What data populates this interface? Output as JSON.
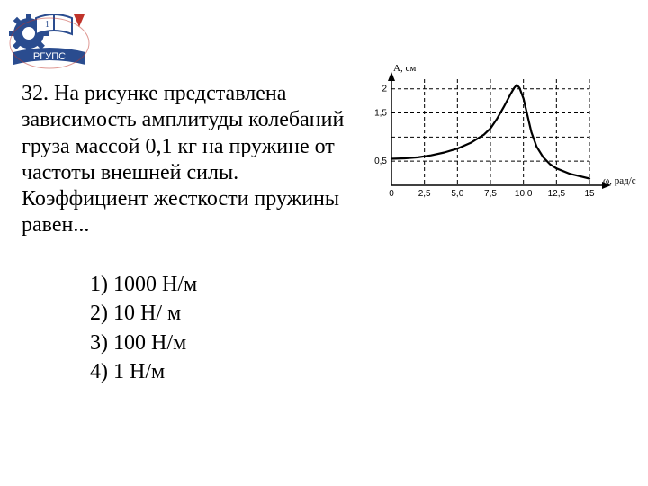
{
  "logo": {
    "top_text": "1",
    "org_text": "РГУПС",
    "gear_color": "#2a4c8f",
    "book_fill": "#ffffff",
    "book_stroke": "#2a4c8f",
    "banner_color": "#2a4c8f",
    "banner_text_color": "#ffffff",
    "marker_color": "#c0332a"
  },
  "question": {
    "text": "32. На рисунке представлена зависимость амплитуды колебаний груза массой 0,1 кг на пружине от частоты внешней силы. Коэффициент жесткости пружины равен...",
    "fontsize": 24,
    "color": "#000000"
  },
  "options": {
    "items": [
      "1) 1000 Н/м",
      "2) 10 Н/ м",
      "3) 100 Н/м",
      "4) 1 Н/м"
    ],
    "fontsize": 24,
    "color": "#000000"
  },
  "chart": {
    "type": "line",
    "title": "",
    "x_label": "ω, рад/с",
    "y_label": "A, см",
    "xlim": [
      0,
      15
    ],
    "ylim": [
      0,
      2.2
    ],
    "xticks": [
      0,
      2.5,
      5.0,
      7.5,
      10.0,
      12.5,
      15
    ],
    "xtick_labels": [
      "0",
      "2,5",
      "5,0",
      "7,5",
      "10,0",
      "12,5",
      "15"
    ],
    "yticks": [
      0,
      0.5,
      1.0,
      1.5,
      2.0
    ],
    "ytick_labels": [
      "",
      "0,5",
      "",
      "1,5",
      "2"
    ],
    "grid_dash": "4,3",
    "grid_color": "#000000",
    "axis_color": "#000000",
    "curve_color": "#000000",
    "curve_width": 2.2,
    "tick_fontsize": 10,
    "label_fontsize": 11,
    "background_color": "#ffffff",
    "curve_points": [
      [
        0.0,
        0.55
      ],
      [
        1.0,
        0.56
      ],
      [
        2.0,
        0.58
      ],
      [
        3.0,
        0.62
      ],
      [
        4.0,
        0.68
      ],
      [
        5.0,
        0.76
      ],
      [
        6.0,
        0.88
      ],
      [
        7.0,
        1.05
      ],
      [
        7.5,
        1.18
      ],
      [
        8.0,
        1.38
      ],
      [
        8.5,
        1.62
      ],
      [
        9.0,
        1.88
      ],
      [
        9.3,
        2.02
      ],
      [
        9.5,
        2.08
      ],
      [
        9.7,
        2.02
      ],
      [
        10.0,
        1.8
      ],
      [
        10.3,
        1.45
      ],
      [
        10.6,
        1.1
      ],
      [
        11.0,
        0.8
      ],
      [
        11.5,
        0.58
      ],
      [
        12.0,
        0.44
      ],
      [
        12.5,
        0.35
      ],
      [
        13.5,
        0.24
      ],
      [
        15.0,
        0.14
      ]
    ]
  }
}
